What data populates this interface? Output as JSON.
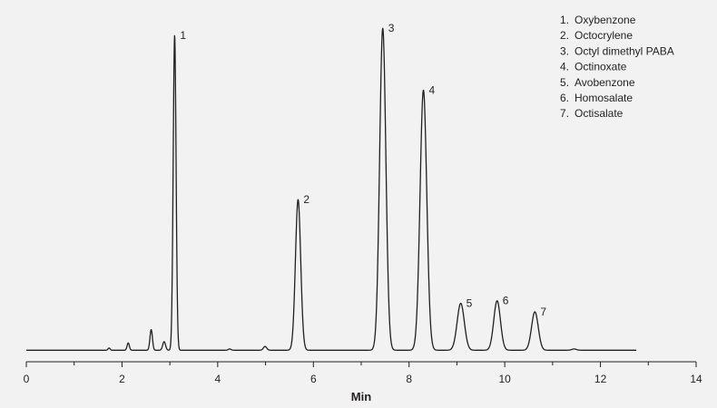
{
  "chart_data": {
    "type": "line",
    "title": "",
    "xlabel": "Min",
    "ylabel": "",
    "xlim": [
      0,
      14
    ],
    "ylim": [
      0,
      100
    ],
    "x_ticks": [
      0,
      2,
      4,
      6,
      8,
      10,
      12,
      14
    ],
    "x_tick_labels": [
      "0",
      "2",
      "4",
      "6",
      "8",
      "10",
      "12",
      "14"
    ],
    "grid": false,
    "legend_position": "top-right",
    "colors": {
      "line": "#231f20",
      "background": "#f2f2f2"
    },
    "trace": {
      "x_start": 0.0,
      "x_end": 12.75,
      "baseline": 0.2,
      "peaks": [
        {
          "label": "",
          "rt": 1.73,
          "height": 0.7,
          "sigma": 0.022
        },
        {
          "label": "",
          "rt": 2.13,
          "height": 2.3,
          "sigma": 0.024
        },
        {
          "label": "",
          "rt": 2.61,
          "height": 6.5,
          "sigma": 0.026
        },
        {
          "label": "",
          "rt": 2.88,
          "height": 2.7,
          "sigma": 0.03
        },
        {
          "label": "1",
          "rt": 3.1,
          "height": 99.2,
          "sigma": 0.03
        },
        {
          "label": "",
          "rt": 4.25,
          "height": 0.4,
          "sigma": 0.03
        },
        {
          "label": "",
          "rt": 4.99,
          "height": 1.2,
          "sigma": 0.035
        },
        {
          "label": "2",
          "rt": 5.68,
          "height": 47.5,
          "sigma": 0.055
        },
        {
          "label": "3",
          "rt": 7.45,
          "height": 101.5,
          "sigma": 0.065
        },
        {
          "label": "4",
          "rt": 8.3,
          "height": 82.0,
          "sigma": 0.07
        },
        {
          "label": "5",
          "rt": 9.08,
          "height": 14.8,
          "sigma": 0.075
        },
        {
          "label": "6",
          "rt": 9.84,
          "height": 15.6,
          "sigma": 0.07
        },
        {
          "label": "7",
          "rt": 10.63,
          "height": 12.1,
          "sigma": 0.07
        },
        {
          "label": "",
          "rt": 11.45,
          "height": 0.4,
          "sigma": 0.05
        }
      ]
    },
    "legend": {
      "entries": [
        {
          "num": "1.",
          "name": "Oxybenzone"
        },
        {
          "num": "2.",
          "name": "Octocrylene"
        },
        {
          "num": "3.",
          "name": "Octyl dimethyl PABA"
        },
        {
          "num": "4.",
          "name": "Octinoxate"
        },
        {
          "num": "5.",
          "name": "Avobenzone"
        },
        {
          "num": "6.",
          "name": "Homosalate"
        },
        {
          "num": "7.",
          "name": "Octisalate"
        }
      ]
    }
  }
}
